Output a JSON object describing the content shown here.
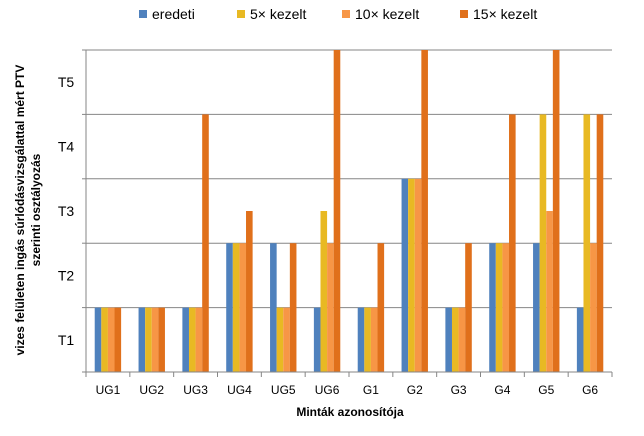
{
  "chart_data": {
    "type": "bar",
    "xlabel": "Minták azonosítója",
    "ylabel_lines": [
      "vizes felületen ingás súrlódásvizsgálattal mért PTV",
      "szerinti osztályozás"
    ],
    "y_tick_labels": [
      "T1",
      "T2",
      "T3",
      "T4",
      "T5"
    ],
    "ylim": [
      0,
      5
    ],
    "grid": true,
    "legend_position": "top",
    "categories": [
      "UG1",
      "UG2",
      "UG3",
      "UG4",
      "UG5",
      "UG6",
      "G1",
      "G2",
      "G3",
      "G4",
      "G5",
      "G6"
    ],
    "series": [
      {
        "name": "eredeti",
        "color": "#4f81bd",
        "values": [
          1,
          1,
          1,
          2,
          2,
          1,
          1,
          3,
          1,
          2,
          2,
          1
        ]
      },
      {
        "name": "5× kezelt",
        "color": "#e8b923",
        "values": [
          1,
          1,
          1,
          2,
          1,
          2.5,
          1,
          3,
          1,
          2,
          4,
          4
        ]
      },
      {
        "name": "10× kezelt",
        "color": "#f79646",
        "values": [
          1,
          1,
          1,
          2,
          1,
          2,
          1,
          3,
          1,
          2,
          2.5,
          2
        ]
      },
      {
        "name": "15× kezelt",
        "color": "#e0701b",
        "values": [
          1,
          1,
          4,
          2.5,
          2,
          5,
          2,
          5,
          2,
          4,
          5,
          4
        ]
      }
    ]
  }
}
